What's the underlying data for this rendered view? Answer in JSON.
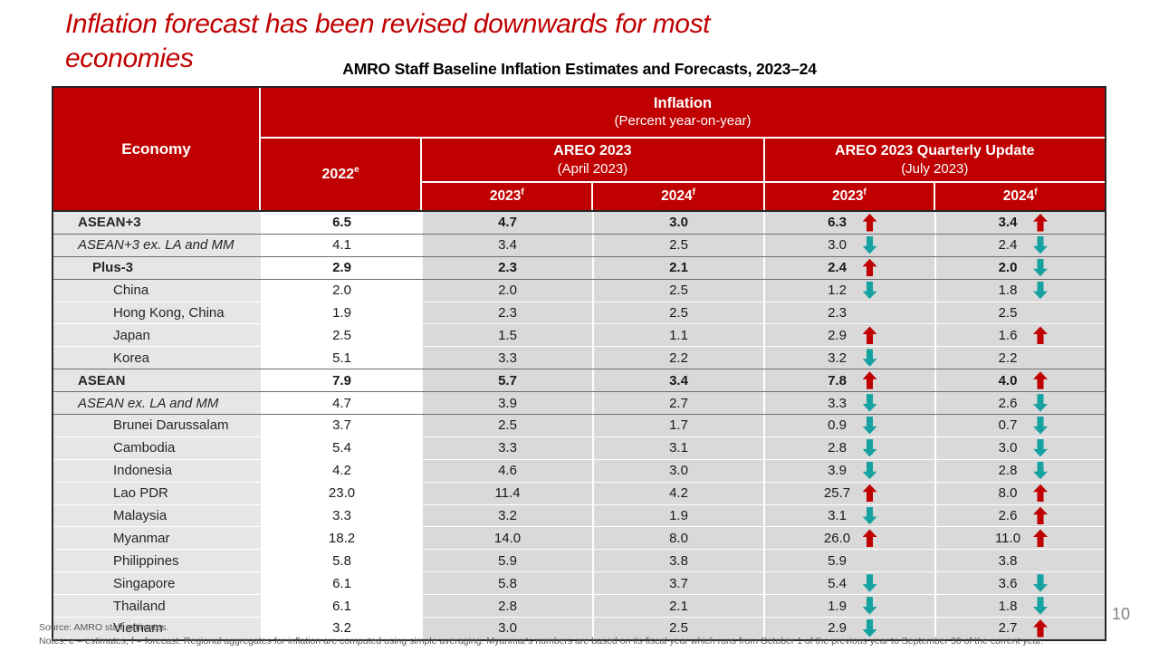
{
  "slide": {
    "title_line1": "Inflation forecast has been revised downwards for most",
    "title_line2": "economies",
    "page_number": "10"
  },
  "table": {
    "caption": "AMRO Staff Baseline Inflation Estimates and Forecasts, 2023–24",
    "header": {
      "economy_label": "Economy",
      "inflation_title": "Inflation",
      "inflation_subtitle": "(Percent year-on-year)",
      "year_2022": "2022",
      "sup_e": "e",
      "areo_april_title": "AREO 2023",
      "areo_april_subtitle": "(April 2023)",
      "areo_update_title": "AREO 2023 Quarterly Update",
      "areo_update_subtitle": "(July 2023)",
      "year_2023": "2023",
      "year_2024": "2024",
      "sup_f": "f"
    },
    "rows": [
      {
        "economy": "ASEAN+3",
        "style": "bold",
        "indent": 0,
        "v2022": "6.5",
        "apr2023": "4.7",
        "apr2024": "3.0",
        "jul2023": "6.3",
        "jul2023_arrow": "up",
        "jul2024": "3.4",
        "jul2024_arrow": "up"
      },
      {
        "economy": "ASEAN+3 ex. LA and MM",
        "style": "italic",
        "indent": 0,
        "v2022": "4.1",
        "apr2023": "3.4",
        "apr2024": "2.5",
        "jul2023": "3.0",
        "jul2023_arrow": "down",
        "jul2024": "2.4",
        "jul2024_arrow": "down"
      },
      {
        "economy": "Plus-3",
        "style": "bold",
        "indent": 1,
        "v2022": "2.9",
        "apr2023": "2.3",
        "apr2024": "2.1",
        "jul2023": "2.4",
        "jul2023_arrow": "up",
        "jul2024": "2.0",
        "jul2024_arrow": "down"
      },
      {
        "economy": "China",
        "style": "member",
        "indent": 2,
        "v2022": "2.0",
        "apr2023": "2.0",
        "apr2024": "2.5",
        "jul2023": "1.2",
        "jul2023_arrow": "down",
        "jul2024": "1.8",
        "jul2024_arrow": "down"
      },
      {
        "economy": "Hong Kong, China",
        "style": "member",
        "indent": 2,
        "v2022": "1.9",
        "apr2023": "2.3",
        "apr2024": "2.5",
        "jul2023": "2.3",
        "jul2023_arrow": "none",
        "jul2024": "2.5",
        "jul2024_arrow": "none"
      },
      {
        "economy": "Japan",
        "style": "member",
        "indent": 2,
        "v2022": "2.5",
        "apr2023": "1.5",
        "apr2024": "1.1",
        "jul2023": "2.9",
        "jul2023_arrow": "up",
        "jul2024": "1.6",
        "jul2024_arrow": "up"
      },
      {
        "economy": "Korea",
        "style": "member",
        "indent": 2,
        "v2022": "5.1",
        "apr2023": "3.3",
        "apr2024": "2.2",
        "jul2023": "3.2",
        "jul2023_arrow": "down",
        "jul2024": "2.2",
        "jul2024_arrow": "none"
      },
      {
        "economy": "ASEAN",
        "style": "bold",
        "indent": 0,
        "v2022": "7.9",
        "apr2023": "5.7",
        "apr2024": "3.4",
        "jul2023": "7.8",
        "jul2023_arrow": "up",
        "jul2024": "4.0",
        "jul2024_arrow": "up"
      },
      {
        "economy": "ASEAN ex. LA and MM",
        "style": "italic",
        "indent": 0,
        "v2022": "4.7",
        "apr2023": "3.9",
        "apr2024": "2.7",
        "jul2023": "3.3",
        "jul2023_arrow": "down",
        "jul2024": "2.6",
        "jul2024_arrow": "down"
      },
      {
        "economy": "Brunei Darussalam",
        "style": "member",
        "indent": 2,
        "v2022": "3.7",
        "apr2023": "2.5",
        "apr2024": "1.7",
        "jul2023": "0.9",
        "jul2023_arrow": "down",
        "jul2024": "0.7",
        "jul2024_arrow": "down"
      },
      {
        "economy": "Cambodia",
        "style": "member",
        "indent": 2,
        "v2022": "5.4",
        "apr2023": "3.3",
        "apr2024": "3.1",
        "jul2023": "2.8",
        "jul2023_arrow": "down",
        "jul2024": "3.0",
        "jul2024_arrow": "down"
      },
      {
        "economy": "Indonesia",
        "style": "member",
        "indent": 2,
        "v2022": "4.2",
        "apr2023": "4.6",
        "apr2024": "3.0",
        "jul2023": "3.9",
        "jul2023_arrow": "down",
        "jul2024": "2.8",
        "jul2024_arrow": "down"
      },
      {
        "economy": "Lao PDR",
        "style": "member",
        "indent": 2,
        "v2022": "23.0",
        "apr2023": "11.4",
        "apr2024": "4.2",
        "jul2023": "25.7",
        "jul2023_arrow": "up",
        "jul2024": "8.0",
        "jul2024_arrow": "up"
      },
      {
        "economy": "Malaysia",
        "style": "member",
        "indent": 2,
        "v2022": "3.3",
        "apr2023": "3.2",
        "apr2024": "1.9",
        "jul2023": "3.1",
        "jul2023_arrow": "down",
        "jul2024": "2.6",
        "jul2024_arrow": "up"
      },
      {
        "economy": "Myanmar",
        "style": "member",
        "indent": 2,
        "v2022": "18.2",
        "apr2023": "14.0",
        "apr2024": "8.0",
        "jul2023": "26.0",
        "jul2023_arrow": "up",
        "jul2024": "11.0",
        "jul2024_arrow": "up"
      },
      {
        "economy": "Philippines",
        "style": "member",
        "indent": 2,
        "v2022": "5.8",
        "apr2023": "5.9",
        "apr2024": "3.8",
        "jul2023": "5.9",
        "jul2023_arrow": "none",
        "jul2024": "3.8",
        "jul2024_arrow": "none"
      },
      {
        "economy": "Singapore",
        "style": "member",
        "indent": 2,
        "v2022": "6.1",
        "apr2023": "5.8",
        "apr2024": "3.7",
        "jul2023": "5.4",
        "jul2023_arrow": "down",
        "jul2024": "3.6",
        "jul2024_arrow": "down"
      },
      {
        "economy": "Thailand",
        "style": "member",
        "indent": 2,
        "v2022": "6.1",
        "apr2023": "2.8",
        "apr2024": "2.1",
        "jul2023": "1.9",
        "jul2023_arrow": "down",
        "jul2024": "1.8",
        "jul2024_arrow": "down"
      },
      {
        "economy": "Vietnam",
        "style": "member",
        "indent": 2,
        "v2022": "3.2",
        "apr2023": "3.0",
        "apr2024": "2.5",
        "jul2023": "2.9",
        "jul2023_arrow": "down",
        "jul2024": "2.7",
        "jul2024_arrow": "up"
      }
    ]
  },
  "footer": {
    "source": "Source: AMRO staff estimates.",
    "notes": "Notes: e = estimates, f = forecast. Regional aggregates for inflation are computed using simple averaging. Myanmar's numbers are based on its fiscal year which runs from October 1 of the previous year to September 30 of the current year."
  },
  "colors": {
    "title_red": "#C00000",
    "header_red": "#C00000",
    "up_arrow": "#C00000",
    "down_arrow": "#17A2A2",
    "econ_col_bg": "#E7E6E6",
    "gray_col_bg": "#D9D9D9",
    "white_col_bg": "#FFFFFF",
    "footer_text": "#595959",
    "page_number_gray": "#808080"
  }
}
